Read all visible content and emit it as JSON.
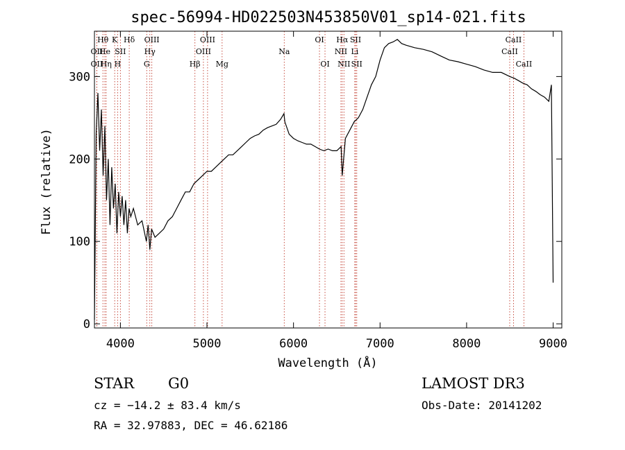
{
  "chart_data": {
    "type": "line",
    "title": "spec-56994-HD022503N453850V01_sp14-021.fits",
    "xlabel": "Wavelength (Å)",
    "ylabel": "Flux (relative)",
    "xlim": [
      3700,
      9100
    ],
    "ylim": [
      -5,
      355
    ],
    "x_ticks": [
      4000,
      5000,
      6000,
      7000,
      8000,
      9000
    ],
    "y_ticks": [
      0,
      100,
      200,
      300
    ],
    "series": [
      {
        "x": [
          3700,
          3720,
          3740,
          3760,
          3780,
          3800,
          3820,
          3840,
          3860,
          3880,
          3900,
          3920,
          3940,
          3960,
          3980,
          4000,
          4020,
          4040,
          4060,
          4080,
          4100,
          4120,
          4150,
          4200,
          4250,
          4300,
          4320,
          4340,
          4360,
          4400,
          4450,
          4500,
          4550,
          4600,
          4650,
          4700,
          4750,
          4800,
          4850,
          4900,
          4950,
          5000,
          5050,
          5100,
          5150,
          5200,
          5250,
          5300,
          5350,
          5400,
          5450,
          5500,
          5550,
          5600,
          5650,
          5700,
          5750,
          5800,
          5850,
          5890,
          5900,
          5950,
          6000,
          6050,
          6100,
          6150,
          6200,
          6250,
          6300,
          6350,
          6400,
          6450,
          6500,
          6550,
          6563,
          6600,
          6650,
          6700,
          6750,
          6800,
          6850,
          6900,
          6950,
          7000,
          7050,
          7100,
          7150,
          7200,
          7250,
          7300,
          7400,
          7500,
          7600,
          7700,
          7800,
          7900,
          8000,
          8100,
          8200,
          8300,
          8400,
          8500,
          8550,
          8600,
          8650,
          8700,
          8750,
          8800,
          8850,
          8900,
          8950,
          8980,
          9000
        ],
        "y": [
          5,
          230,
          280,
          210,
          260,
          180,
          240,
          150,
          200,
          120,
          190,
          140,
          170,
          110,
          160,
          130,
          155,
          120,
          150,
          110,
          140,
          130,
          140,
          120,
          125,
          100,
          120,
          90,
          115,
          105,
          110,
          115,
          125,
          130,
          140,
          150,
          160,
          160,
          170,
          175,
          180,
          185,
          185,
          190,
          195,
          200,
          205,
          205,
          210,
          215,
          220,
          225,
          228,
          230,
          235,
          238,
          240,
          242,
          248,
          255,
          245,
          230,
          225,
          222,
          220,
          218,
          218,
          215,
          212,
          210,
          212,
          210,
          210,
          215,
          180,
          225,
          235,
          245,
          250,
          260,
          275,
          290,
          300,
          320,
          335,
          340,
          342,
          345,
          340,
          338,
          335,
          333,
          330,
          325,
          320,
          318,
          315,
          312,
          308,
          305,
          305,
          300,
          298,
          295,
          292,
          290,
          285,
          282,
          278,
          275,
          270,
          290,
          50
        ]
      }
    ],
    "lines": [
      {
        "label": "Hθ",
        "x": 3798,
        "row": 1
      },
      {
        "label": "OII",
        "x": 3727,
        "row": 2
      },
      {
        "label": "OII",
        "x": 3727,
        "row": 3
      },
      {
        "label": "He",
        "x": 3820,
        "row": 2
      },
      {
        "label": "Hη",
        "x": 3835,
        "row": 3
      },
      {
        "label": "K",
        "x": 3934,
        "row": 1
      },
      {
        "label": "H",
        "x": 3968,
        "row": 3
      },
      {
        "label": "SII",
        "x": 4000,
        "row": 2
      },
      {
        "label": "Hδ",
        "x": 4102,
        "row": 1
      },
      {
        "label": "OIII",
        "x": 4363,
        "row": 1
      },
      {
        "label": "Hγ",
        "x": 4340,
        "row": 2
      },
      {
        "label": "G",
        "x": 4304,
        "row": 3
      },
      {
        "label": "Hβ",
        "x": 4861,
        "row": 3
      },
      {
        "label": "OIII",
        "x": 5007,
        "row": 1
      },
      {
        "label": "OIII",
        "x": 4959,
        "row": 2
      },
      {
        "label": "Mg",
        "x": 5175,
        "row": 3
      },
      {
        "label": "Na",
        "x": 5893,
        "row": 2
      },
      {
        "label": "OI",
        "x": 6300,
        "row": 1
      },
      {
        "label": "OI",
        "x": 6364,
        "row": 3
      },
      {
        "label": "Hα",
        "x": 6563,
        "row": 1
      },
      {
        "label": "NII",
        "x": 6548,
        "row": 2
      },
      {
        "label": "NII",
        "x": 6583,
        "row": 3
      },
      {
        "label": "SII",
        "x": 6717,
        "row": 1
      },
      {
        "label": "Li",
        "x": 6708,
        "row": 2
      },
      {
        "label": "SII",
        "x": 6731,
        "row": 3
      },
      {
        "label": "CaII",
        "x": 8542,
        "row": 1
      },
      {
        "label": "CaII",
        "x": 8498,
        "row": 2
      },
      {
        "label": "CaII",
        "x": 8662,
        "row": 3
      }
    ]
  },
  "footer": {
    "class_label": "STAR",
    "subclass": "G0",
    "survey": "LAMOST DR3",
    "cz": "cz = −14.2 ± 83.4 km/s",
    "obs_date": "Obs-Date: 20141202",
    "coords": "RA =  32.97883, DEC =  46.62186"
  }
}
